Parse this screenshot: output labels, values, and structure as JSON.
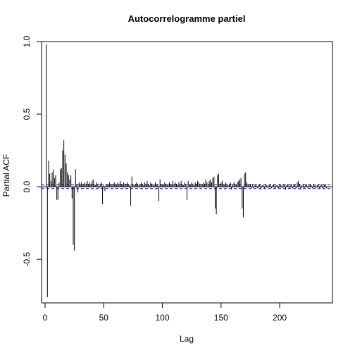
{
  "chart_data": {
    "type": "bar",
    "title": "Autocorrelogramme partiel",
    "xlabel": "Lag",
    "ylabel": "Partial ACF",
    "xlim": [
      -3,
      245
    ],
    "ylim": [
      -0.8,
      1.0
    ],
    "x_ticks": [
      0,
      50,
      100,
      150,
      200
    ],
    "x_tick_labels": [
      "0",
      "50",
      "100",
      "150",
      "200"
    ],
    "y_ticks": [
      -0.5,
      0.0,
      0.5,
      1.0
    ],
    "y_tick_labels": [
      "-0.5",
      "0.0",
      "0.5",
      "1.0"
    ],
    "confidence_bound": 0.013,
    "zero_line": true,
    "grid": false,
    "spikes": [
      [
        1,
        0.98
      ],
      [
        2,
        -0.76
      ],
      [
        3,
        0.18
      ],
      [
        4,
        0.09
      ],
      [
        5,
        0.04
      ],
      [
        6,
        0.1
      ],
      [
        7,
        0.12
      ],
      [
        8,
        0.06
      ],
      [
        9,
        0.08
      ],
      [
        10,
        -0.09
      ],
      [
        11,
        -0.09
      ],
      [
        12,
        0.03
      ],
      [
        13,
        0.12
      ],
      [
        14,
        0.13
      ],
      [
        15,
        0.25
      ],
      [
        16,
        0.32
      ],
      [
        17,
        0.22
      ],
      [
        18,
        0.16
      ],
      [
        19,
        0.1
      ],
      [
        20,
        0.08
      ],
      [
        21,
        0.05
      ],
      [
        22,
        0.08
      ],
      [
        23,
        -0.08
      ],
      [
        24,
        -0.4
      ],
      [
        25,
        -0.44
      ],
      [
        26,
        0.12
      ],
      [
        27,
        0.02
      ],
      [
        28,
        -0.04
      ],
      [
        29,
        0.03
      ],
      [
        30,
        0.02
      ],
      [
        31,
        0.03
      ],
      [
        32,
        0.01
      ],
      [
        33,
        0.02
      ],
      [
        34,
        0.03
      ],
      [
        35,
        0.02
      ],
      [
        36,
        0.04
      ],
      [
        37,
        0.02
      ],
      [
        38,
        0.03
      ],
      [
        39,
        0.02
      ],
      [
        40,
        0.04
      ],
      [
        41,
        0.05
      ],
      [
        42,
        0.02
      ],
      [
        43,
        0.01
      ],
      [
        44,
        0.03
      ],
      [
        45,
        0.02
      ],
      [
        46,
        -0.01
      ],
      [
        47,
        0.02
      ],
      [
        48,
        0.03
      ],
      [
        49,
        -0.12
      ],
      [
        50,
        0.01
      ],
      [
        51,
        -0.03
      ],
      [
        52,
        0.02
      ],
      [
        53,
        0.01
      ],
      [
        54,
        0.02
      ],
      [
        55,
        0.03
      ],
      [
        56,
        0.02
      ],
      [
        57,
        0.01
      ],
      [
        58,
        0.02
      ],
      [
        59,
        0.03
      ],
      [
        60,
        0.02
      ],
      [
        61,
        0.01
      ],
      [
        62,
        0.03
      ],
      [
        63,
        0.02
      ],
      [
        64,
        0.04
      ],
      [
        65,
        0.02
      ],
      [
        66,
        0.01
      ],
      [
        67,
        0.03
      ],
      [
        68,
        0.02
      ],
      [
        69,
        0.02
      ],
      [
        70,
        0.03
      ],
      [
        71,
        0.02
      ],
      [
        72,
        0.01
      ],
      [
        73,
        -0.13
      ],
      [
        74,
        0.07
      ],
      [
        75,
        0.02
      ],
      [
        76,
        0.01
      ],
      [
        77,
        0.02
      ],
      [
        78,
        0.03
      ],
      [
        79,
        0.02
      ],
      [
        80,
        0.01
      ],
      [
        81,
        0.02
      ],
      [
        82,
        0.03
      ],
      [
        83,
        0.02
      ],
      [
        84,
        0.01
      ],
      [
        85,
        0.03
      ],
      [
        86,
        0.02
      ],
      [
        87,
        0.04
      ],
      [
        88,
        0.02
      ],
      [
        89,
        0.01
      ],
      [
        90,
        0.03
      ],
      [
        91,
        0.02
      ],
      [
        92,
        0.01
      ],
      [
        93,
        0.02
      ],
      [
        94,
        0.03
      ],
      [
        95,
        0.01
      ],
      [
        96,
        0.02
      ],
      [
        97,
        -0.1
      ],
      [
        98,
        0.05
      ],
      [
        99,
        0.02
      ],
      [
        100,
        0.01
      ],
      [
        101,
        0.02
      ],
      [
        102,
        0.03
      ],
      [
        103,
        0.02
      ],
      [
        104,
        0.01
      ],
      [
        105,
        0.02
      ],
      [
        106,
        0.03
      ],
      [
        107,
        0.02
      ],
      [
        108,
        0.01
      ],
      [
        109,
        0.04
      ],
      [
        110,
        0.02
      ],
      [
        111,
        0.03
      ],
      [
        112,
        0.02
      ],
      [
        113,
        0.01
      ],
      [
        114,
        0.03
      ],
      [
        115,
        0.02
      ],
      [
        116,
        0.04
      ],
      [
        117,
        0.02
      ],
      [
        118,
        0.01
      ],
      [
        119,
        0.03
      ],
      [
        120,
        0.02
      ],
      [
        121,
        -0.09
      ],
      [
        122,
        0.04
      ],
      [
        123,
        0.02
      ],
      [
        124,
        0.01
      ],
      [
        125,
        0.03
      ],
      [
        126,
        0.02
      ],
      [
        127,
        0.01
      ],
      [
        128,
        0.03
      ],
      [
        129,
        0.02
      ],
      [
        130,
        0.04
      ],
      [
        131,
        0.03
      ],
      [
        132,
        0.02
      ],
      [
        133,
        0.01
      ],
      [
        134,
        0.02
      ],
      [
        135,
        0.03
      ],
      [
        136,
        0.02
      ],
      [
        137,
        0.05
      ],
      [
        138,
        0.03
      ],
      [
        139,
        0.02
      ],
      [
        140,
        0.04
      ],
      [
        141,
        0.05
      ],
      [
        142,
        0.03
      ],
      [
        143,
        0.06
      ],
      [
        144,
        0.07
      ],
      [
        145,
        -0.15
      ],
      [
        146,
        -0.19
      ],
      [
        147,
        0.08
      ],
      [
        148,
        0.09
      ],
      [
        149,
        0.02
      ],
      [
        150,
        0.03
      ],
      [
        151,
        0.04
      ],
      [
        152,
        0.02
      ],
      [
        153,
        0.01
      ],
      [
        154,
        0.03
      ],
      [
        155,
        0.02
      ],
      [
        156,
        0.01
      ],
      [
        157,
        0.02
      ],
      [
        158,
        0.03
      ],
      [
        159,
        -0.02
      ],
      [
        160,
        0.02
      ],
      [
        161,
        0.03
      ],
      [
        162,
        0.02
      ],
      [
        163,
        0.01
      ],
      [
        164,
        0.03
      ],
      [
        165,
        0.04
      ],
      [
        166,
        0.05
      ],
      [
        167,
        0.06
      ],
      [
        168,
        -0.15
      ],
      [
        169,
        -0.21
      ],
      [
        170,
        0.09
      ],
      [
        171,
        0.1
      ],
      [
        172,
        0.03
      ],
      [
        173,
        0.02
      ],
      [
        174,
        0.01
      ],
      [
        175,
        0.02
      ],
      [
        176,
        -0.01
      ],
      [
        177,
        0.02
      ],
      [
        178,
        -0.01
      ],
      [
        179,
        0.01
      ],
      [
        180,
        0.02
      ],
      [
        181,
        -0.01
      ],
      [
        182,
        0.01
      ],
      [
        183,
        0.02
      ],
      [
        184,
        -0.02
      ],
      [
        185,
        0.01
      ],
      [
        186,
        0.01
      ],
      [
        187,
        -0.01
      ],
      [
        188,
        0.02
      ],
      [
        189,
        0.01
      ],
      [
        190,
        -0.01
      ],
      [
        191,
        0.01
      ],
      [
        192,
        0.02
      ],
      [
        193,
        -0.01
      ],
      [
        194,
        0.01
      ],
      [
        195,
        0.02
      ],
      [
        196,
        -0.01
      ],
      [
        197,
        0.01
      ],
      [
        198,
        0.01
      ],
      [
        199,
        -0.01
      ],
      [
        200,
        0.02
      ],
      [
        201,
        0.01
      ],
      [
        202,
        -0.01
      ],
      [
        203,
        0.02
      ],
      [
        204,
        0.01
      ],
      [
        205,
        -0.02
      ],
      [
        206,
        0.01
      ],
      [
        207,
        0.02
      ],
      [
        208,
        -0.01
      ],
      [
        209,
        0.01
      ],
      [
        210,
        0.02
      ],
      [
        211,
        -0.01
      ],
      [
        212,
        0.01
      ],
      [
        213,
        0.02
      ],
      [
        214,
        -0.01
      ],
      [
        215,
        0.03
      ],
      [
        216,
        0.04
      ],
      [
        217,
        0.02
      ],
      [
        218,
        -0.02
      ],
      [
        219,
        0.01
      ],
      [
        220,
        0.02
      ],
      [
        221,
        -0.01
      ],
      [
        222,
        0.01
      ],
      [
        223,
        0.02
      ],
      [
        224,
        -0.01
      ],
      [
        225,
        0.01
      ],
      [
        226,
        0.02
      ],
      [
        227,
        0.01
      ],
      [
        228,
        -0.01
      ],
      [
        229,
        0.02
      ],
      [
        230,
        0.01
      ],
      [
        231,
        -0.01
      ],
      [
        232,
        0.01
      ],
      [
        233,
        0.02
      ],
      [
        234,
        -0.01
      ],
      [
        235,
        0.01
      ],
      [
        236,
        0.02
      ],
      [
        237,
        -0.01
      ],
      [
        238,
        0.01
      ],
      [
        239,
        0.02
      ],
      [
        240,
        -0.01
      ]
    ],
    "colors": {
      "spike": "#000000",
      "confidence": "#0000ff",
      "axis": "#000000"
    }
  }
}
